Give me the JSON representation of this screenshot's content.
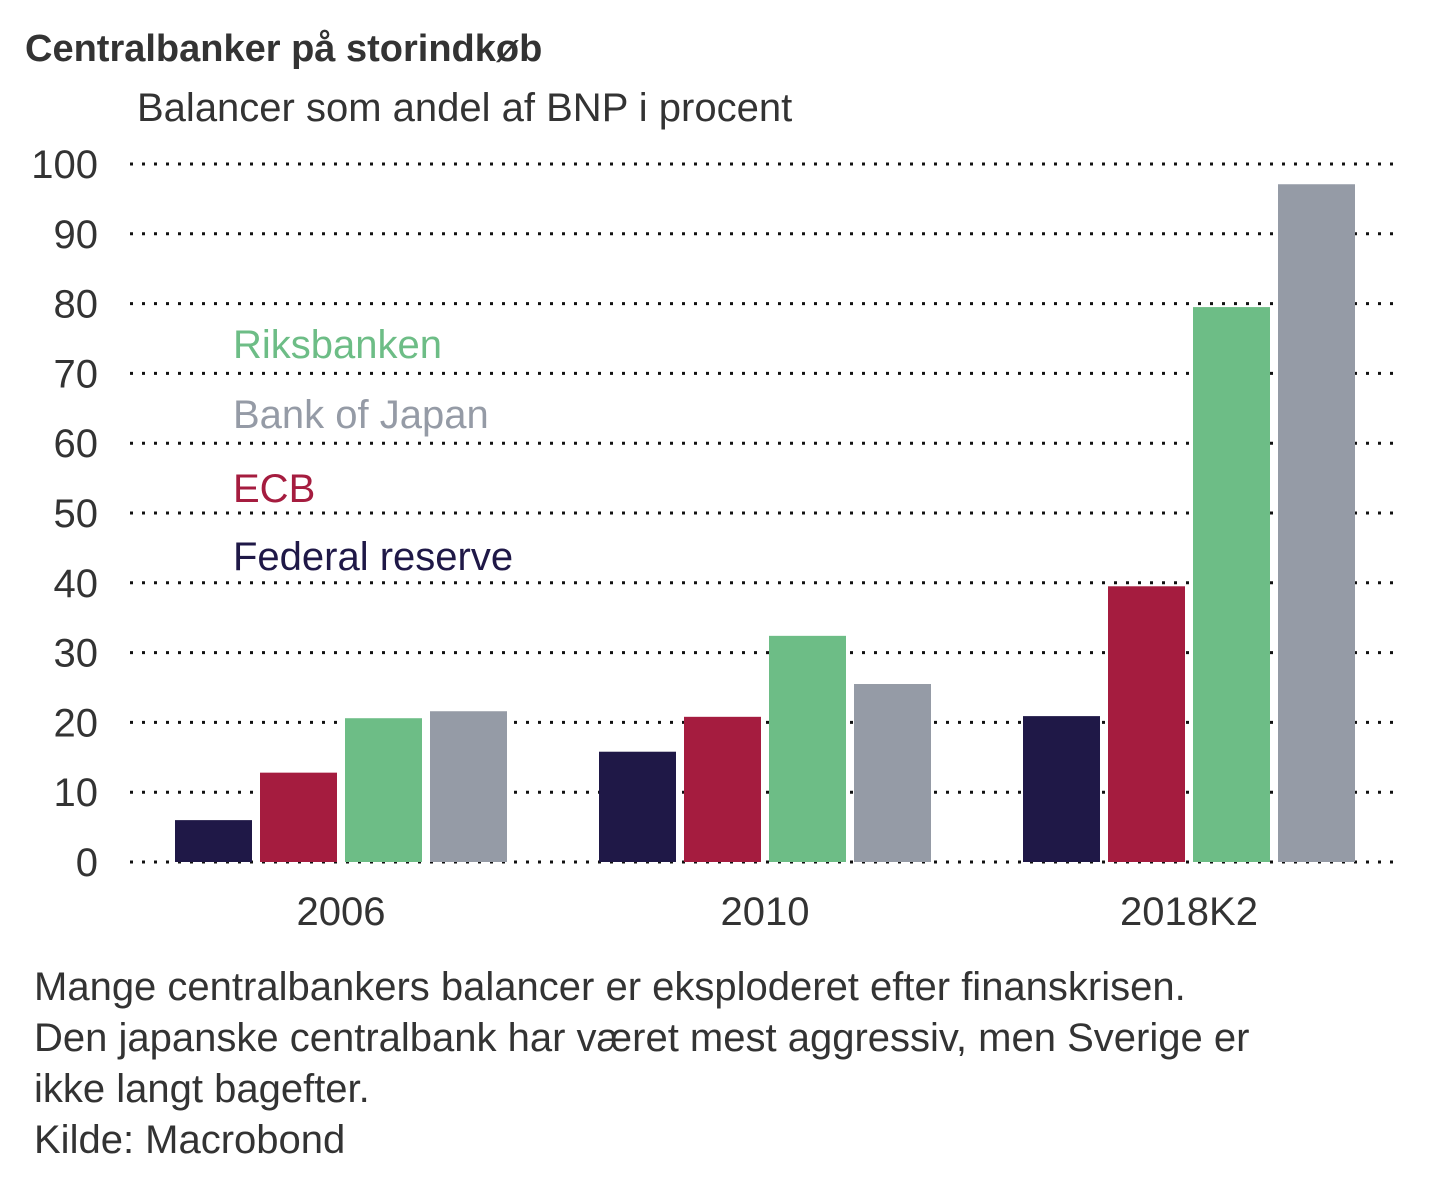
{
  "chart_data": {
    "type": "bar",
    "title": "Centralbanker på storindkøb",
    "subtitle": "Balancer som andel af BNP i procent",
    "xlabel": "",
    "ylabel": "",
    "ylim": [
      0,
      100
    ],
    "yticks": [
      "0",
      "10",
      "20",
      "30",
      "40",
      "50",
      "60",
      "70",
      "80",
      "90",
      "100"
    ],
    "grid": true,
    "legend_placement": "inside-left",
    "categories": [
      "2006",
      "2010",
      "2018K2"
    ],
    "series": [
      {
        "name": "Federal reserve",
        "color": "#1f1847",
        "values": [
          6.0,
          15.8,
          20.9
        ]
      },
      {
        "name": "ECB",
        "color": "#a51c3f",
        "values": [
          12.8,
          20.8,
          39.5
        ]
      },
      {
        "name": "Riksbanken",
        "color": "#6dbd86",
        "values": [
          20.6,
          32.4,
          79.5
        ]
      },
      {
        "name": "Bank of Japan",
        "color": "#959ba6",
        "values": [
          21.6,
          25.5,
          97.1
        ]
      }
    ],
    "legend_order": [
      "Riksbanken",
      "Bank of Japan",
      "ECB",
      "Federal reserve"
    ]
  },
  "caption": {
    "lines": [
      "Mange centralbankers balancer er eksploderet efter finanskrisen.",
      "Den japanske centralbank har været mest aggressiv, men Sverige er",
      "ikke langt bagefter."
    ],
    "source": "Kilde: Macrobond"
  }
}
